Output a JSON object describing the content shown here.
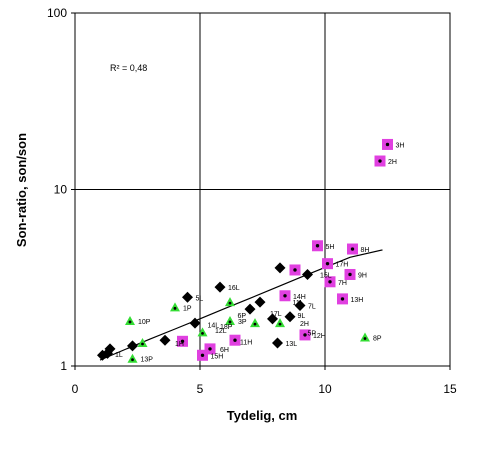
{
  "chart_data": {
    "type": "scatter",
    "xlabel": "Tydelig, cm",
    "ylabel": "Son-ratio, son/son",
    "xlim": [
      0,
      15
    ],
    "ylim": [
      1,
      100
    ],
    "y_scale": "log",
    "x_ticks": [
      "0",
      "5",
      "10",
      "15"
    ],
    "y_ticks": [
      "1",
      "10",
      "100"
    ],
    "grid": "vertical at 5 and 10; horizontal at 10",
    "annotation": "R² = 0,48",
    "colors": {
      "H": "#e040e0",
      "L": "#000000",
      "P": "#33dd33",
      "trend": "#000000"
    },
    "series": [
      {
        "marker": "square",
        "points": [
          {
            "label": "3H",
            "x": 12.5,
            "y": 18.0
          },
          {
            "label": "2H",
            "x": 12.2,
            "y": 14.5
          },
          {
            "label": "5H",
            "x": 9.7,
            "y": 4.8
          },
          {
            "label": "8H",
            "x": 11.1,
            "y": 4.6
          },
          {
            "label": "17H",
            "x": 10.1,
            "y": 3.8
          },
          {
            "label": "9H",
            "x": 11.0,
            "y": 3.3
          },
          {
            "label": "7H",
            "x": 10.2,
            "y": 3.0
          },
          {
            "label": "",
            "x": 8.8,
            "y": 3.5
          },
          {
            "label": "14H",
            "x": 8.4,
            "y": 2.5
          },
          {
            "label": "13H",
            "x": 10.7,
            "y": 2.4
          },
          {
            "label": "12H",
            "x": 9.2,
            "y": 1.5
          },
          {
            "label": "",
            "x": 6.4,
            "y": 1.4
          },
          {
            "label": "",
            "x": 5.4,
            "y": 1.25
          },
          {
            "label": "15H",
            "x": 5.1,
            "y": 1.15
          },
          {
            "label": "",
            "x": 4.3,
            "y": 1.38
          }
        ]
      },
      {
        "marker": "diamond",
        "points": [
          {
            "label": "16L",
            "x": 5.8,
            "y": 2.8
          },
          {
            "label": "",
            "x": 8.2,
            "y": 3.6
          },
          {
            "label": "",
            "x": 9.3,
            "y": 3.3
          },
          {
            "label": "5L",
            "x": 4.5,
            "y": 2.45
          },
          {
            "label": "7L",
            "x": 9.0,
            "y": 2.2
          },
          {
            "label": "",
            "x": 7.4,
            "y": 2.3
          },
          {
            "label": "",
            "x": 7.0,
            "y": 2.1
          },
          {
            "label": "",
            "x": 8.6,
            "y": 1.9
          },
          {
            "label": "",
            "x": 7.9,
            "y": 1.85
          },
          {
            "label": "",
            "x": 4.8,
            "y": 1.75
          },
          {
            "label": "",
            "x": 3.6,
            "y": 1.4
          },
          {
            "label": "13L",
            "x": 8.1,
            "y": 1.35
          },
          {
            "label": "",
            "x": 2.3,
            "y": 1.3
          },
          {
            "label": "",
            "x": 1.4,
            "y": 1.25
          },
          {
            "label": "",
            "x": 1.3,
            "y": 1.18
          },
          {
            "label": "",
            "x": 1.1,
            "y": 1.15
          }
        ]
      },
      {
        "marker": "triangle",
        "points": [
          {
            "label": "1P",
            "x": 4.0,
            "y": 2.15
          },
          {
            "label": "10P",
            "x": 2.2,
            "y": 1.8
          },
          {
            "label": "",
            "x": 6.2,
            "y": 2.3
          },
          {
            "label": "3P",
            "x": 6.2,
            "y": 1.8
          },
          {
            "label": "",
            "x": 7.2,
            "y": 1.75
          },
          {
            "label": "",
            "x": 8.2,
            "y": 1.75
          },
          {
            "label": "8P",
            "x": 11.6,
            "y": 1.45
          },
          {
            "label": "13P",
            "x": 2.3,
            "y": 1.1
          },
          {
            "label": "",
            "x": 2.7,
            "y": 1.35
          },
          {
            "label": "",
            "x": 5.1,
            "y": 1.55
          }
        ]
      }
    ],
    "trendline": {
      "x": [
        1,
        2,
        3,
        4,
        5,
        6,
        7,
        8,
        9,
        10,
        11,
        12.3
      ],
      "y": [
        1.08,
        1.24,
        1.42,
        1.62,
        1.85,
        2.12,
        2.42,
        2.77,
        3.17,
        3.62,
        4.13,
        4.55
      ]
    },
    "extra_labels": [
      {
        "text": "14L",
        "x": 5.3,
        "y": 1.72
      },
      {
        "text": "18P",
        "x": 5.8,
        "y": 1.68
      },
      {
        "text": "1H",
        "x": 4.0,
        "y": 1.35
      },
      {
        "text": "11H",
        "x": 6.6,
        "y": 1.38
      },
      {
        "text": "6H",
        "x": 5.8,
        "y": 1.25
      },
      {
        "text": "15L",
        "x": 9.8,
        "y": 3.3
      },
      {
        "text": "11L",
        "x": 8.7,
        "y": 2.3
      },
      {
        "text": "17L",
        "x": 7.8,
        "y": 2.0
      },
      {
        "text": "9L",
        "x": 8.9,
        "y": 1.95
      },
      {
        "text": "2H",
        "x": 9.0,
        "y": 1.75
      },
      {
        "text": "5P",
        "x": 9.3,
        "y": 1.55
      },
      {
        "text": "12L",
        "x": 5.6,
        "y": 1.6
      },
      {
        "text": "6P",
        "x": 6.5,
        "y": 1.95
      },
      {
        "text": "1L",
        "x": 1.6,
        "y": 1.17
      }
    ]
  }
}
